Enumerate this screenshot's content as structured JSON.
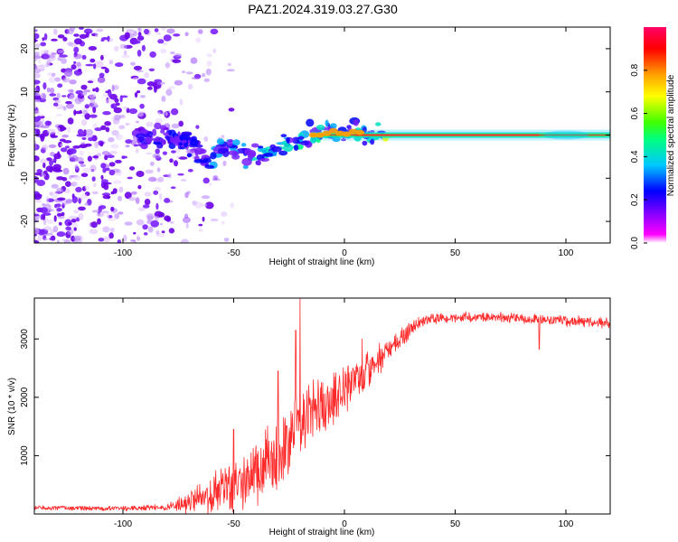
{
  "figure": {
    "title": "PAZ1.2024.319.03.27.G30"
  },
  "colors": {
    "snr_line": "#ff2a2a",
    "background": "#ffffff",
    "axis": "#000000",
    "track_core": "#ff2a2a",
    "colormap_stops": [
      "#ffffff",
      "#ff00ff",
      "#8000ff",
      "#0000ff",
      "#00c8ff",
      "#00ff80",
      "#40ff00",
      "#ffff00",
      "#ffa000",
      "#ff0000",
      "#ff0066"
    ]
  },
  "chart_data": [
    {
      "type": "heatmap",
      "name": "spectrogram",
      "xlabel": "Height of straight line (km)",
      "ylabel": "Frequency (Hz)",
      "xlim": [
        -140,
        120
      ],
      "ylim": [
        -25,
        25
      ],
      "xticks": [
        -100,
        -50,
        0,
        50,
        100
      ],
      "yticks": [
        -20,
        -10,
        0,
        10,
        20
      ],
      "tick_labels_x": [
        "-100",
        "-50",
        "0",
        "50",
        "100"
      ],
      "tick_labels_y": [
        "-20",
        "-10",
        "0",
        "10",
        "20"
      ],
      "grid": false,
      "colorbar": {
        "label": "Normalized spectral amplitude",
        "range": [
          0,
          1
        ],
        "ticks": [
          0,
          0.2,
          0.4,
          0.6,
          0.8
        ],
        "tick_labels": [
          "0.0",
          "0.2",
          "0.4",
          "0.6",
          "0.8"
        ]
      },
      "ridge": {
        "height_km": [
          -80,
          -75,
          -70,
          -65,
          -60,
          -55,
          -50,
          -45,
          -40,
          -35,
          -30,
          -25,
          -20,
          -15,
          -10,
          -5,
          0,
          5,
          10,
          20,
          40,
          60,
          80,
          100,
          120
        ],
        "frequency_hz": [
          0,
          -1,
          -2,
          -5,
          -6,
          -2,
          -3,
          -4,
          -5,
          -4,
          -3,
          -2,
          -1,
          0,
          0,
          1,
          0,
          1,
          0,
          0,
          0,
          0,
          0,
          0,
          0
        ]
      }
    },
    {
      "type": "line",
      "name": "snr",
      "xlabel": "Height of straight line (km)",
      "ylabel": "SNR (10 * v/v)",
      "xlim": [
        -140,
        120
      ],
      "ylim": [
        0,
        3700
      ],
      "xticks": [
        -100,
        -50,
        0,
        50,
        100
      ],
      "yticks": [
        1000,
        2000,
        3000
      ],
      "tick_labels_x": [
        "-100",
        "-50",
        "0",
        "50",
        "100"
      ],
      "tick_labels_y": [
        "1000",
        "2000",
        "3000"
      ],
      "grid": false,
      "trend": {
        "x": [
          -140,
          -120,
          -100,
          -80,
          -70,
          -60,
          -50,
          -40,
          -30,
          -25,
          -20,
          -15,
          -10,
          -5,
          0,
          10,
          20,
          30,
          35,
          40,
          60,
          80,
          100,
          120
        ],
        "y": [
          110,
          100,
          95,
          115,
          200,
          350,
          500,
          700,
          1000,
          1300,
          1550,
          1700,
          1850,
          2000,
          2150,
          2450,
          2800,
          3150,
          3300,
          3350,
          3380,
          3350,
          3300,
          3280
        ]
      },
      "noise_amplitude": {
        "x": [
          -140,
          -80,
          -70,
          -50,
          -30,
          -20,
          -10,
          0,
          10,
          20,
          30,
          40,
          120
        ],
        "y": [
          40,
          50,
          220,
          500,
          700,
          650,
          550,
          450,
          350,
          250,
          150,
          90,
          100
        ]
      },
      "peaks": [
        {
          "x": -20,
          "y": 3700
        },
        {
          "x": -22,
          "y": 3150
        },
        {
          "x": -30,
          "y": 2450
        },
        {
          "x": -50,
          "y": 1450
        },
        {
          "x": 8,
          "y": 3000
        },
        {
          "x": 88,
          "y": 2820
        }
      ]
    }
  ]
}
